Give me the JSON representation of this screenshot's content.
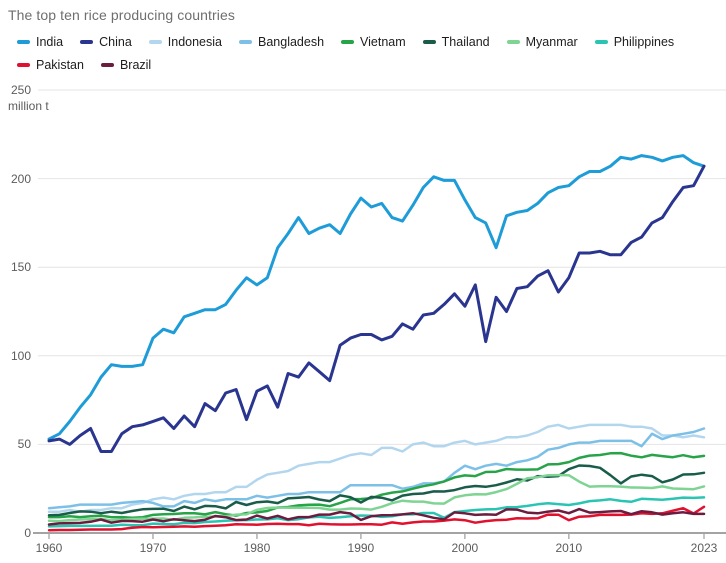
{
  "title": "The top ten rice producing countries",
  "y_axis": {
    "unit_label": "million t",
    "ticks": [
      0,
      50,
      100,
      150,
      200,
      250
    ]
  },
  "x_axis": {
    "ticks": [
      1960,
      1970,
      1980,
      1990,
      2000,
      2010,
      2023
    ]
  },
  "colors": {
    "grid": "#e4e4e4",
    "axis": "#a3a3a3",
    "title_text": "#6e6e6e",
    "axis_text": "#5c5c5c",
    "legend_text": "#1d1d1d"
  },
  "chart_data": {
    "type": "line",
    "title": "The top ten rice producing countries",
    "xlabel": "",
    "ylabel": "million t",
    "x_range": [
      1960,
      2023
    ],
    "ylim": [
      0,
      250
    ],
    "grid": true,
    "legend_position": "top",
    "legend_rows": [
      [
        "India",
        "China",
        "Indonesia",
        "Bangladesh",
        "Vietnam",
        "Thailand",
        "Myanmar",
        "Philippines"
      ],
      [
        "Pakistan",
        "Brazil"
      ]
    ],
    "series": [
      {
        "name": "India",
        "color": "#1e9cd8",
        "values": [
          53,
          56,
          63,
          71,
          78,
          88,
          95,
          94,
          94,
          95,
          110,
          115,
          113,
          122,
          124,
          126,
          126,
          129,
          137,
          144,
          140,
          144,
          161,
          169,
          178,
          169,
          172,
          174,
          169,
          180,
          189,
          184,
          186,
          178,
          176,
          185,
          195,
          201,
          199,
          199,
          188,
          178,
          175,
          161,
          179,
          181,
          182,
          186,
          192,
          195,
          196,
          201,
          204,
          204,
          207,
          212,
          211,
          213,
          212,
          210,
          212,
          213,
          209,
          207
        ]
      },
      {
        "name": "China",
        "color": "#2a3590",
        "values": [
          52,
          53,
          50,
          55,
          59,
          46,
          46,
          56,
          60,
          61,
          63,
          65,
          59,
          66,
          60,
          73,
          69,
          79,
          81,
          64,
          80,
          83,
          71,
          90,
          88,
          96,
          91,
          86,
          106,
          110,
          112,
          112,
          109,
          111,
          118,
          115,
          123,
          124,
          129,
          135,
          128,
          140,
          108,
          133,
          125,
          138,
          139,
          145,
          148,
          136,
          144,
          158,
          158,
          159,
          157,
          157,
          164,
          167,
          175,
          178,
          187,
          195,
          196,
          207
        ]
      },
      {
        "name": "Indonesia",
        "color": "#b3d6ef",
        "values": [
          12,
          12,
          13,
          12,
          13,
          13,
          14,
          14,
          16,
          17,
          19,
          20,
          19,
          21,
          22,
          22,
          23,
          23,
          26,
          26,
          30,
          33,
          34,
          35,
          38,
          39,
          40,
          40,
          42,
          44,
          45,
          44,
          48,
          48,
          46,
          50,
          51,
          49,
          49,
          51,
          52,
          50,
          51,
          52,
          54,
          54,
          55,
          57,
          60,
          61,
          59,
          60,
          61,
          61,
          61,
          61,
          60,
          60,
          59,
          55,
          55,
          54,
          55,
          54
        ]
      },
      {
        "name": "Bangladesh",
        "color": "#7cc0e8",
        "values": [
          14,
          14.5,
          15,
          16,
          16,
          16,
          16,
          17,
          17.5,
          18,
          17,
          15,
          15,
          18,
          17,
          19,
          18,
          19,
          19,
          19,
          21,
          20,
          21,
          22,
          22,
          23,
          23,
          23,
          23,
          27,
          27,
          27,
          27,
          27,
          25,
          26,
          28,
          28,
          29,
          34,
          38,
          36,
          38,
          39,
          38,
          40,
          41,
          43,
          47,
          48,
          50,
          51,
          51,
          52,
          52,
          52,
          52,
          49,
          56,
          53,
          55,
          56,
          57,
          59
        ]
      },
      {
        "name": "Vietnam",
        "color": "#27a348",
        "values": [
          9,
          9,
          9.5,
          9,
          9.5,
          9.8,
          8.9,
          9,
          8.6,
          8.9,
          10.2,
          10.6,
          10.7,
          11.1,
          11.2,
          10.5,
          11.8,
          10.6,
          9.8,
          11.3,
          11.6,
          12.4,
          14.4,
          14.7,
          15.6,
          15.9,
          16,
          15.1,
          17,
          19,
          19.2,
          19.6,
          21.6,
          22.8,
          23.5,
          25,
          26.4,
          27.5,
          29.1,
          31.4,
          32.5,
          32.1,
          34.4,
          34.6,
          36.1,
          35.8,
          35.8,
          35.9,
          38.7,
          38.9,
          40,
          42.4,
          43.7,
          44,
          45,
          45.1,
          43.6,
          42.7,
          44.1,
          43.4,
          42.8,
          43.9,
          42.7,
          43.5
        ]
      },
      {
        "name": "Thailand",
        "color": "#1a5c4a",
        "values": [
          10,
          10.2,
          11.3,
          12.2,
          12,
          11.2,
          12,
          11.3,
          12.4,
          13.4,
          13.6,
          13.7,
          12.4,
          14.9,
          13.4,
          15.3,
          15.1,
          13.9,
          17.5,
          15.8,
          17.4,
          17.8,
          16.9,
          19.5,
          19.9,
          20.3,
          18.9,
          18,
          21.2,
          20.2,
          17.2,
          20.4,
          19.9,
          18.4,
          21.1,
          22,
          22.3,
          23.5,
          23.4,
          24.2,
          25.8,
          26.5,
          26.1,
          27,
          28.5,
          30.3,
          29.6,
          32.1,
          31.7,
          32.1,
          36,
          38.1,
          37.8,
          36.8,
          32.6,
          28,
          31.9,
          32.9,
          32.1,
          28.6,
          30.2,
          33,
          33.1,
          34
        ]
      },
      {
        "name": "Myanmar",
        "color": "#7fd493",
        "values": [
          6.9,
          6.7,
          7.3,
          7.6,
          7.8,
          8,
          7.1,
          7.5,
          7.9,
          8,
          8.1,
          8.2,
          7.4,
          8.6,
          8.8,
          9.2,
          9.3,
          9.4,
          10.4,
          10.5,
          13.1,
          14.1,
          14.4,
          14.3,
          14.3,
          14.3,
          14.1,
          13.2,
          13.2,
          13.8,
          13.7,
          13.2,
          14.8,
          16.8,
          18.2,
          17.7,
          17.7,
          16.7,
          16.6,
          20.1,
          21.3,
          21.9,
          21.8,
          23.1,
          24.8,
          27.7,
          30.9,
          31.5,
          32.6,
          32.7,
          32.6,
          29,
          26.2,
          26.4,
          26.4,
          26.2,
          25.7,
          25.6,
          25.4,
          26.3,
          25.1,
          24.9,
          24.7,
          26.3
        ]
      },
      {
        "name": "Philippines",
        "color": "#29c5b2",
        "values": [
          3.7,
          3.9,
          4,
          4,
          4,
          4.1,
          4.1,
          4.6,
          4.4,
          4.4,
          5.3,
          5.1,
          4.9,
          5.7,
          5.6,
          6.2,
          6.5,
          6.9,
          7.2,
          7.3,
          7.6,
          7.7,
          8.3,
          7.3,
          7.8,
          8.8,
          9.2,
          8.5,
          8.9,
          9.5,
          9.9,
          9.7,
          9.1,
          9.4,
          10.5,
          10.5,
          11.3,
          11.3,
          8.6,
          11.8,
          12.4,
          13,
          13.3,
          13.5,
          14.5,
          14.6,
          15.3,
          16.2,
          16.8,
          16.3,
          15.8,
          16.7,
          18,
          18.4,
          19,
          18.1,
          17.6,
          19.3,
          19.1,
          18.8,
          19.3,
          20,
          19.8,
          20.1
        ]
      },
      {
        "name": "Pakistan",
        "color": "#e0112f",
        "values": [
          1.6,
          1.7,
          1.7,
          1.8,
          2,
          2,
          2,
          2.2,
          3,
          3.4,
          3.3,
          3.4,
          3.5,
          3.7,
          3.5,
          3.9,
          4.1,
          4.4,
          4.9,
          4.8,
          4.7,
          5.1,
          5.2,
          5,
          5,
          4.4,
          5.2,
          4.9,
          4.8,
          4.8,
          4.9,
          4.9,
          4.7,
          6,
          5.2,
          6,
          6.5,
          6.5,
          7,
          7.7,
          7.2,
          5.8,
          6.7,
          7.3,
          7.5,
          8.3,
          8.2,
          8.3,
          10.4,
          10.3,
          7.2,
          9.2,
          9.4,
          10.2,
          10.3,
          10.2,
          10.4,
          11.2,
          10.8,
          11.1,
          12.6,
          14,
          11,
          14.8
        ]
      },
      {
        "name": "Brazil",
        "color": "#6b1c3f",
        "values": [
          4.8,
          5.4,
          5.6,
          5.7,
          6.3,
          7.6,
          5.8,
          6.8,
          6.7,
          6.4,
          7.6,
          6.6,
          7.8,
          7.2,
          6.7,
          7.5,
          9.6,
          8.9,
          7.3,
          7.6,
          9.8,
          8.2,
          9.7,
          7.7,
          9,
          9,
          10.4,
          10.4,
          11.8,
          11,
          7.4,
          9.5,
          10,
          10.1,
          10.5,
          11.2,
          10,
          8.6,
          7.7,
          11.6,
          11.1,
          10.2,
          10.5,
          10.3,
          13.3,
          13.2,
          11.5,
          11.1,
          12.1,
          12.7,
          11.2,
          13.5,
          11.5,
          11.8,
          12.2,
          12.4,
          10.6,
          12.3,
          11.7,
          10.4,
          11.1,
          11.7,
          10.8,
          10.8
        ]
      }
    ]
  }
}
